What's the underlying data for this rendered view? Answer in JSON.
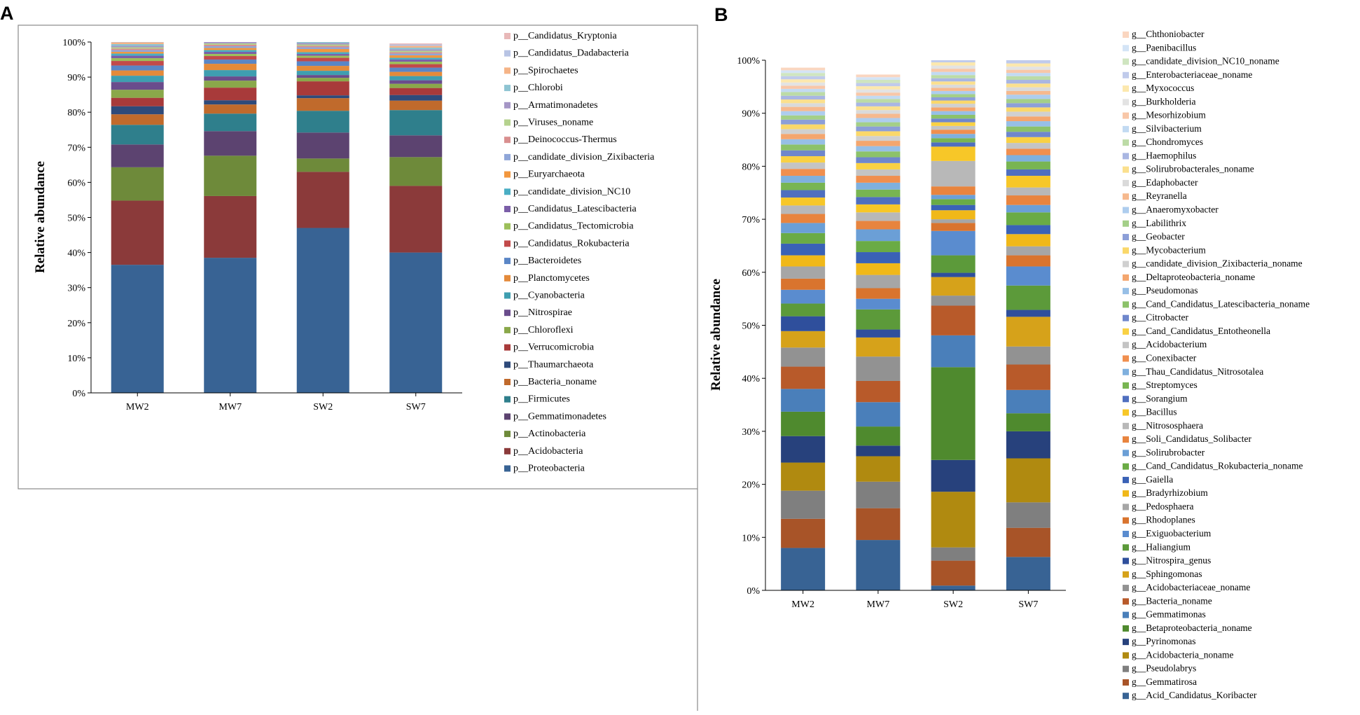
{
  "panels": [
    {
      "letter": "A",
      "ylabel": "Relative abundance",
      "yticks": [
        "0%",
        "10%",
        "20%",
        "30%",
        "40%",
        "50%",
        "60%",
        "70%",
        "80%",
        "90%",
        "100%"
      ],
      "categories": [
        "MW2",
        "MW7",
        "SW2",
        "SW7"
      ],
      "series": [
        {
          "name": "p__Proteobacteria",
          "color": "#386394",
          "values": [
            36.5,
            38.5,
            47.0,
            40.0
          ]
        },
        {
          "name": "p__Acidobacteria",
          "color": "#8b3a3a",
          "values": [
            18.3,
            17.6,
            16.0,
            19.0
          ]
        },
        {
          "name": "p__Actinobacteria",
          "color": "#6e8a3a",
          "values": [
            9.5,
            11.5,
            3.8,
            8.2
          ]
        },
        {
          "name": "p__Gemmatimonadetes",
          "color": "#5c4370",
          "values": [
            6.5,
            7.0,
            7.4,
            6.2
          ]
        },
        {
          "name": "p__Firmicutes",
          "color": "#2f7f8c",
          "values": [
            5.6,
            5.0,
            6.2,
            7.2
          ]
        },
        {
          "name": "p__Bacteria_noname",
          "color": "#c06a2c",
          "values": [
            3.0,
            2.6,
            3.6,
            2.7
          ]
        },
        {
          "name": "p__Thaumarchaeota",
          "color": "#2e4a7a",
          "values": [
            2.3,
            1.2,
            0.8,
            1.6
          ]
        },
        {
          "name": "p__Verrucomicrobia",
          "color": "#a83a3a",
          "values": [
            2.4,
            3.6,
            4.0,
            2.0
          ]
        },
        {
          "name": "p__Chloroflexi",
          "color": "#8aa84a",
          "values": [
            2.3,
            2.0,
            1.0,
            1.2
          ]
        },
        {
          "name": "p__Nitrospirae",
          "color": "#6a4c8c",
          "values": [
            2.2,
            1.2,
            0.8,
            1.0
          ]
        },
        {
          "name": "p__Cyanobacteria",
          "color": "#3f9eb0",
          "values": [
            1.8,
            1.8,
            1.2,
            1.2
          ]
        },
        {
          "name": "p__Planctomycetes",
          "color": "#e48a3a",
          "values": [
            1.5,
            1.8,
            1.4,
            1.2
          ]
        },
        {
          "name": "p__Bacteroidetes",
          "color": "#5a86c6",
          "values": [
            1.4,
            1.2,
            1.3,
            1.2
          ]
        },
        {
          "name": "p__Candidatus_Rokubacteria",
          "color": "#c24a4a",
          "values": [
            1.3,
            1.0,
            1.0,
            1.0
          ]
        },
        {
          "name": "p__Candidatus_Tectomicrobia",
          "color": "#9cbf5a",
          "values": [
            0.8,
            0.6,
            0.6,
            0.7
          ]
        },
        {
          "name": "p__Candidatus_Latescibacteria",
          "color": "#7b5ea8",
          "values": [
            0.7,
            0.6,
            0.5,
            0.6
          ]
        },
        {
          "name": "p__candidate_division_NC10",
          "color": "#4aaec4",
          "values": [
            0.6,
            0.5,
            0.5,
            0.5
          ]
        },
        {
          "name": "p__Euryarchaeota",
          "color": "#f2973e",
          "values": [
            0.5,
            0.6,
            0.9,
            0.7
          ]
        },
        {
          "name": "p__candidate_division_Zixibacteria",
          "color": "#8fa6d8",
          "values": [
            0.5,
            0.5,
            0.5,
            0.5
          ]
        },
        {
          "name": "p__Deinococcus-Thermus",
          "color": "#d98f8f",
          "values": [
            0.4,
            0.4,
            0.4,
            0.4
          ]
        },
        {
          "name": "p__Viruses_noname",
          "color": "#b5d28e",
          "values": [
            0.4,
            0.4,
            0.4,
            0.4
          ]
        },
        {
          "name": "p__Armatimonadetes",
          "color": "#a596c6",
          "values": [
            0.4,
            0.4,
            0.4,
            0.4
          ]
        },
        {
          "name": "p__Chlorobi",
          "color": "#8ec4d2",
          "values": [
            0.5,
            0.5,
            0.5,
            0.5
          ]
        },
        {
          "name": "p__Spirochaetes",
          "color": "#f5b487",
          "values": [
            0.5,
            0.5,
            0.5,
            0.5
          ]
        },
        {
          "name": "p__Candidatus_Dadabacteria",
          "color": "#b8c4e4",
          "values": [
            0.4,
            0.4,
            0.4,
            0.4
          ]
        },
        {
          "name": "p__Candidatus_Kryptonia",
          "color": "#e8b8b8",
          "values": [
            0.3,
            0.3,
            0.3,
            0.3
          ]
        }
      ]
    },
    {
      "letter": "B",
      "ylabel": "Relative abundance",
      "yticks": [
        "0%",
        "10%",
        "20%",
        "30%",
        "40%",
        "50%",
        "60%",
        "70%",
        "80%",
        "90%",
        "100%"
      ],
      "categories": [
        "MW2",
        "MW7",
        "SW2",
        "SW7"
      ],
      "series": [
        {
          "name": "g__Acid_Candidatus_Koribacter",
          "color": "#386394",
          "values": [
            8.0,
            9.5,
            0.9,
            6.3
          ]
        },
        {
          "name": "g__Gemmatirosa",
          "color": "#a85428",
          "values": [
            5.5,
            6.0,
            4.7,
            5.5
          ]
        },
        {
          "name": "g__Pseudolabrys",
          "color": "#7f7f7f",
          "values": [
            5.3,
            5.0,
            2.5,
            4.8
          ]
        },
        {
          "name": "g__Acidobacteria_noname",
          "color": "#b08a10",
          "values": [
            5.3,
            4.8,
            10.5,
            8.3
          ]
        },
        {
          "name": "g__Pyrinomonas",
          "color": "#27417c",
          "values": [
            5.0,
            2.0,
            6.0,
            5.1
          ]
        },
        {
          "name": "g__Betaproteobacteria_noname",
          "color": "#4f8a2e",
          "values": [
            4.6,
            3.6,
            17.5,
            3.4
          ]
        },
        {
          "name": "g__Gemmatimonas",
          "color": "#4a7fba",
          "values": [
            4.3,
            4.6,
            6.0,
            4.4
          ]
        },
        {
          "name": "g__Bacteria_noname",
          "color": "#b85a2a",
          "values": [
            4.2,
            4.0,
            5.6,
            4.8
          ]
        },
        {
          "name": "g__Acidobacteriaceae_noname",
          "color": "#929292",
          "values": [
            3.6,
            4.6,
            1.9,
            3.4
          ]
        },
        {
          "name": "g__Sphingomonas",
          "color": "#d6a21a",
          "values": [
            3.1,
            3.6,
            3.5,
            5.6
          ]
        },
        {
          "name": "g__Nitrospira_genus",
          "color": "#2f4f9c",
          "values": [
            2.8,
            1.5,
            0.8,
            1.3
          ]
        },
        {
          "name": "g__Haliangium",
          "color": "#5c9a3a",
          "values": [
            2.4,
            3.8,
            3.3,
            4.6
          ]
        },
        {
          "name": "g__Exiguobacterium",
          "color": "#5a8ccf",
          "values": [
            2.6,
            2.0,
            4.6,
            3.6
          ]
        },
        {
          "name": "g__Rhodoplanes",
          "color": "#d9742e",
          "values": [
            2.1,
            2.0,
            1.5,
            2.1
          ]
        },
        {
          "name": "g__Pedosphaera",
          "color": "#a6a6a6",
          "values": [
            2.3,
            2.5,
            0.7,
            1.7
          ]
        },
        {
          "name": "g__Bradyrhizobium",
          "color": "#f0b819",
          "values": [
            2.1,
            2.2,
            1.7,
            2.3
          ]
        },
        {
          "name": "g__Gaiella",
          "color": "#3a62b6",
          "values": [
            2.2,
            2.1,
            1.0,
            1.7
          ]
        },
        {
          "name": "g__Cand_Candidatus_Rokubacteria_noname",
          "color": "#6aab45",
          "values": [
            2.0,
            2.1,
            1.1,
            2.4
          ]
        },
        {
          "name": "g__Solirubrobacter",
          "color": "#6b9fd6",
          "values": [
            1.9,
            2.2,
            0.8,
            1.4
          ]
        },
        {
          "name": "g__Soli_Candidatus_Solibacter",
          "color": "#e8843e",
          "values": [
            1.7,
            1.6,
            1.6,
            1.8
          ]
        },
        {
          "name": "g__Nitrososphaera",
          "color": "#b8b8b8",
          "values": [
            1.6,
            1.6,
            4.8,
            1.5
          ]
        },
        {
          "name": "g__Bacillus",
          "color": "#f7c728",
          "values": [
            1.5,
            1.5,
            2.7,
            2.2
          ]
        },
        {
          "name": "g__Sorangium",
          "color": "#4f6fbf",
          "values": [
            1.4,
            1.4,
            0.8,
            1.2
          ]
        },
        {
          "name": "g__Streptomyces",
          "color": "#78b552",
          "values": [
            1.4,
            1.4,
            0.8,
            1.5
          ]
        },
        {
          "name": "g__Thau_Candidatus_Nitrosotalea",
          "color": "#7fb0de",
          "values": [
            1.3,
            1.3,
            0.8,
            1.2
          ]
        },
        {
          "name": "g__Conexibacter",
          "color": "#f08f4f",
          "values": [
            1.3,
            1.3,
            0.8,
            1.2
          ]
        },
        {
          "name": "g__Acidobacterium",
          "color": "#c4c4c4",
          "values": [
            1.2,
            1.2,
            0.7,
            1.1
          ]
        },
        {
          "name": "g__Cand_Candidatus_Entotheonella",
          "color": "#f9d144",
          "values": [
            1.2,
            1.2,
            0.7,
            1.1
          ]
        },
        {
          "name": "g__Citrobacter",
          "color": "#6f87cc",
          "values": [
            1.1,
            1.1,
            0.7,
            1.0
          ]
        },
        {
          "name": "g__Cand_Candidatus_Latescibacteria_noname",
          "color": "#8cc26a",
          "values": [
            1.1,
            1.1,
            0.7,
            1.0
          ]
        },
        {
          "name": "g__Pseudomonas",
          "color": "#97bfe6",
          "values": [
            1.0,
            1.0,
            0.7,
            1.0
          ]
        },
        {
          "name": "g__Deltaproteobacteria_noname",
          "color": "#f4a66e",
          "values": [
            1.0,
            1.0,
            0.7,
            0.9
          ]
        },
        {
          "name": "g__candidate_division_Zixibacteria_noname",
          "color": "#d0d0d0",
          "values": [
            0.9,
            0.9,
            0.7,
            0.9
          ]
        },
        {
          "name": "g__Mycobacterium",
          "color": "#fad86a",
          "values": [
            0.9,
            0.9,
            0.6,
            0.8
          ]
        },
        {
          "name": "g__Geobacter",
          "color": "#8c9fd8",
          "values": [
            0.9,
            0.9,
            0.6,
            0.8
          ]
        },
        {
          "name": "g__Labilithrix",
          "color": "#a4cf88",
          "values": [
            0.8,
            0.8,
            0.6,
            0.8
          ]
        },
        {
          "name": "g__Anaeromyxobacter",
          "color": "#aecdee",
          "values": [
            0.8,
            0.8,
            0.6,
            0.8
          ]
        },
        {
          "name": "g__Reyranella",
          "color": "#f6b98e",
          "values": [
            0.8,
            0.8,
            0.6,
            0.7
          ]
        },
        {
          "name": "g__Edaphobacter",
          "color": "#dadada",
          "values": [
            0.7,
            0.7,
            0.6,
            0.7
          ]
        },
        {
          "name": "g__Solirubrobacterales_noname",
          "color": "#fbe08e",
          "values": [
            0.7,
            0.7,
            0.6,
            0.7
          ]
        },
        {
          "name": "g__Haemophilus",
          "color": "#a9b6e2",
          "values": [
            0.7,
            0.7,
            0.6,
            0.7
          ]
        },
        {
          "name": "g__Chondromyces",
          "color": "#bcdba6",
          "values": [
            0.7,
            0.7,
            0.6,
            0.7
          ]
        },
        {
          "name": "g__Silvibacterium",
          "color": "#c2daf2",
          "values": [
            0.6,
            0.6,
            0.6,
            0.6
          ]
        },
        {
          "name": "g__Mesorhizobium",
          "color": "#f8c7a8",
          "values": [
            0.6,
            0.6,
            0.6,
            0.6
          ]
        },
        {
          "name": "g__Burkholderia",
          "color": "#e3e3e3",
          "values": [
            0.6,
            0.6,
            0.6,
            0.6
          ]
        },
        {
          "name": "g__Myxococcus",
          "color": "#fce8ae",
          "values": [
            0.6,
            0.6,
            0.6,
            0.6
          ]
        },
        {
          "name": "g__Enterobacteriaceae_noname",
          "color": "#c0cbeb",
          "values": [
            0.6,
            0.6,
            0.6,
            0.6
          ]
        },
        {
          "name": "g__candidate_division_NC10_noname",
          "color": "#cfe5c0",
          "values": [
            0.6,
            0.6,
            0.6,
            0.6
          ]
        },
        {
          "name": "g__Paenibacillus",
          "color": "#d4e4f6",
          "values": [
            0.5,
            0.5,
            0.5,
            0.5
          ]
        },
        {
          "name": "g__Chthoniobacter",
          "color": "#fad6c0",
          "values": [
            0.5,
            0.5,
            0.5,
            0.5
          ]
        }
      ]
    }
  ],
  "chart_data": [
    {
      "type": "bar",
      "stacked": true,
      "title": "A",
      "xlabel": "",
      "ylabel": "Relative abundance",
      "ylim": [
        0,
        100
      ],
      "categories": [
        "MW2",
        "MW7",
        "SW2",
        "SW7"
      ]
    },
    {
      "type": "bar",
      "stacked": true,
      "title": "B",
      "xlabel": "",
      "ylabel": "Relative abundance",
      "ylim": [
        0,
        100
      ],
      "categories": [
        "MW2",
        "MW7",
        "SW2",
        "SW7"
      ]
    }
  ]
}
